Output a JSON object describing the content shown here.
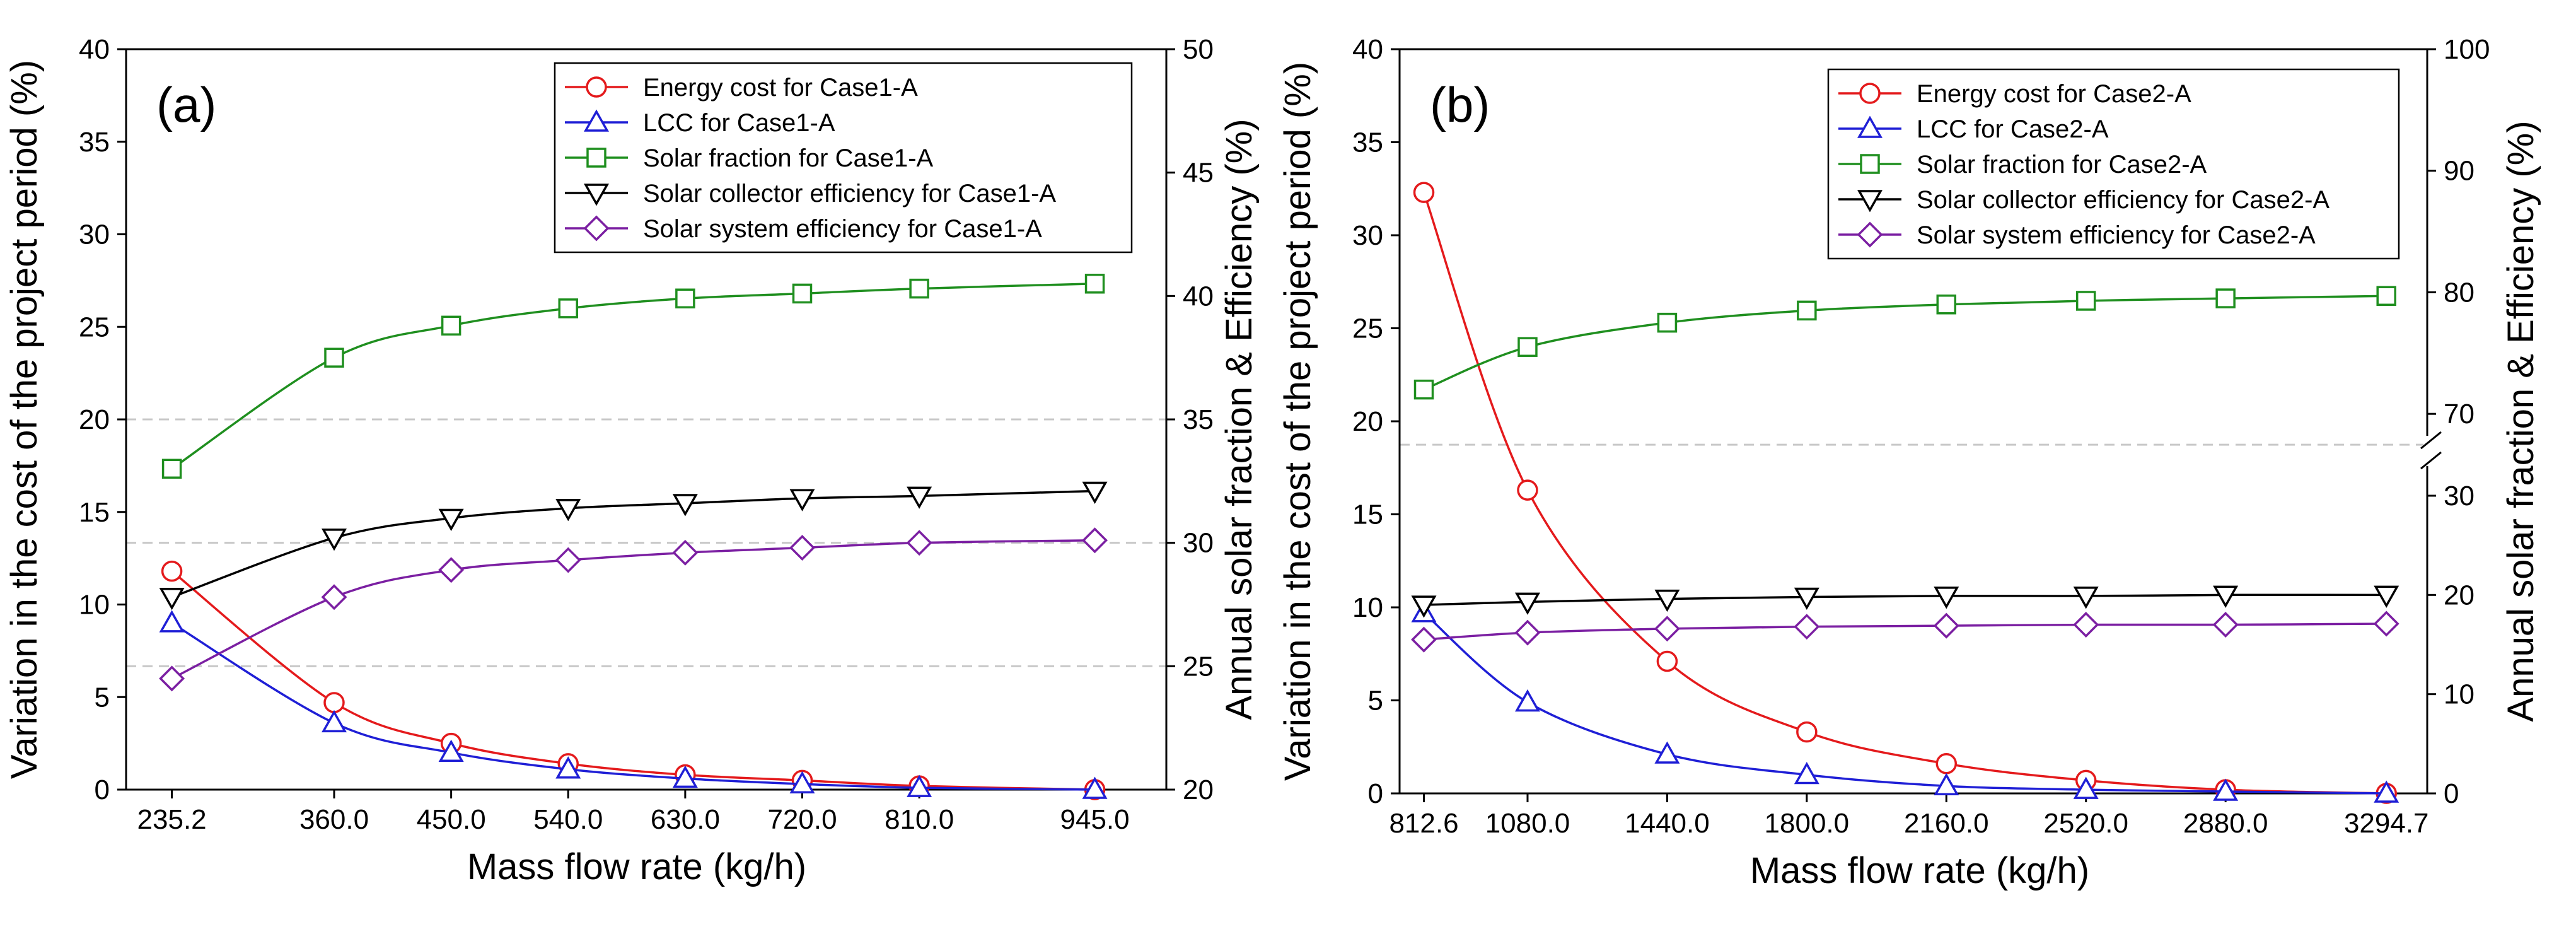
{
  "chart_data": [
    {
      "type": "line",
      "panel_label": "(a)",
      "xlabel": "Mass flow rate (kg/h)",
      "ylabel": "Variation in the cost of the project period (%)",
      "y2label": "Annual solar fraction & Efficiency (%)",
      "x": [
        235.2,
        360.0,
        450.0,
        540.0,
        630.0,
        720.0,
        810.0,
        945.0
      ],
      "x_tick_labels": [
        "235.2",
        "360.0",
        "450.0",
        "540.0",
        "630.0",
        "720.0",
        "810.0",
        "945.0"
      ],
      "ylim": [
        0,
        40
      ],
      "y_ticks": [
        "0",
        "5",
        "10",
        "15",
        "20",
        "25",
        "30",
        "35",
        "40"
      ],
      "y2lim": [
        20,
        50
      ],
      "y2_ticks": [
        "20",
        "25",
        "30",
        "35",
        "40",
        "45",
        "50"
      ],
      "legend_position": "top-right",
      "series": [
        {
          "name": "Energy cost for Case1-A",
          "axis": "left",
          "color": "#e41a1c",
          "marker": "circle",
          "values": [
            11.8,
            4.7,
            2.5,
            1.4,
            0.8,
            0.5,
            0.2,
            0.0
          ]
        },
        {
          "name": "LCC for Case1-A",
          "axis": "left",
          "color": "#1f1fd6",
          "marker": "triangle-up",
          "values": [
            9.0,
            3.6,
            2.0,
            1.1,
            0.6,
            0.3,
            0.1,
            0.0
          ]
        },
        {
          "name": "Solar fraction for Case1-A",
          "axis": "right",
          "color": "#1f8f1f",
          "marker": "square",
          "values": [
            33.0,
            37.5,
            38.8,
            39.5,
            39.9,
            40.1,
            40.3,
            40.5
          ]
        },
        {
          "name": "Solar collector efficiency for Case1-A",
          "axis": "right",
          "color": "#000000",
          "marker": "triangle-down",
          "values": [
            27.8,
            30.2,
            31.0,
            31.4,
            31.6,
            31.8,
            31.9,
            32.1
          ]
        },
        {
          "name": "Solar system efficiency for Case1-A",
          "axis": "right",
          "color": "#7b1fa2",
          "marker": "diamond",
          "values": [
            24.5,
            27.8,
            28.9,
            29.3,
            29.6,
            29.8,
            30.0,
            30.1
          ]
        }
      ]
    },
    {
      "type": "line",
      "panel_label": "(b)",
      "xlabel": "Mass flow rate (kg/h)",
      "ylabel": "Variation in the cost of the project period (%)",
      "y2label": "Annual solar fraction & Efficiency (%)",
      "x": [
        812.6,
        1080.0,
        1440.0,
        1800.0,
        2160.0,
        2520.0,
        2880.0,
        3294.7
      ],
      "x_tick_labels": [
        "812.6",
        "1080.0",
        "1440.0",
        "1800.0",
        "2160.0",
        "2520.0",
        "2880.0",
        "3294.7"
      ],
      "ylim": [
        0,
        40
      ],
      "y_ticks": [
        "0",
        "5",
        "10",
        "15",
        "20",
        "25",
        "30",
        "35",
        "40"
      ],
      "y2_segments": [
        {
          "range": [
            0,
            30
          ],
          "ticks": [
            "0",
            "10",
            "20",
            "30"
          ]
        },
        {
          "range": [
            70,
            100
          ],
          "ticks": [
            "70",
            "80",
            "90",
            "100"
          ]
        }
      ],
      "y2_axis_break": "between 30 and 70",
      "legend_position": "top-right",
      "series": [
        {
          "name": "Energy cost for Case2-A",
          "axis": "left",
          "color": "#e41a1c",
          "marker": "circle",
          "values": [
            32.3,
            16.3,
            7.1,
            3.3,
            1.6,
            0.7,
            0.2,
            0.0
          ]
        },
        {
          "name": "LCC for Case2-A",
          "axis": "left",
          "color": "#1f1fd6",
          "marker": "triangle-up",
          "values": [
            9.7,
            4.9,
            2.1,
            1.0,
            0.4,
            0.2,
            0.1,
            0.0
          ]
        },
        {
          "name": "Solar fraction for Case2-A",
          "axis": "right",
          "color": "#1f8f1f",
          "marker": "square",
          "values": [
            72.0,
            75.5,
            77.5,
            78.5,
            79.0,
            79.3,
            79.5,
            79.7
          ]
        },
        {
          "name": "Solar collector efficiency for Case2-A",
          "axis": "right",
          "color": "#000000",
          "marker": "triangle-down",
          "values": [
            19.0,
            19.3,
            19.6,
            19.8,
            19.9,
            19.9,
            20.0,
            20.0
          ]
        },
        {
          "name": "Solar system efficiency for Case2-A",
          "axis": "right",
          "color": "#7b1fa2",
          "marker": "diamond",
          "values": [
            15.5,
            16.2,
            16.6,
            16.8,
            16.9,
            17.0,
            17.0,
            17.1
          ]
        }
      ]
    }
  ]
}
